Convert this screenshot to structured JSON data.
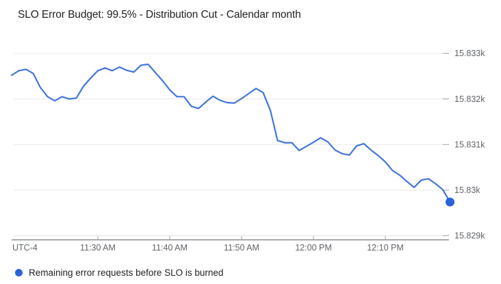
{
  "title": "SLO Error Budget: 99.5% - Distribution Cut - Calendar month",
  "legend": {
    "label": "Remaining error requests before SLO is burned"
  },
  "colors": {
    "line": "#4175da",
    "endpoint_marker": "#2a62d8",
    "legend_marker": "#2a62d8",
    "gridline": "#e8e8e8",
    "axis_line": "#74787d",
    "tick": "#9aa0a6",
    "axis_label": "#5f6368",
    "title_text": "#202124",
    "background": "#ffffff"
  },
  "chart_data": {
    "type": "line",
    "title": "SLO Error Budget: 99.5% - Distribution Cut - Calendar month",
    "series_name": "Remaining error requests before SLO is burned",
    "timezone_label": "UTC-4",
    "grid": true,
    "legend_position": "bottom",
    "y_axis_side": "right",
    "ylim": [
      15829,
      15833.3
    ],
    "y_ticks": [
      {
        "label": "15.833k",
        "value": 15833
      },
      {
        "label": "15.832k",
        "value": 15832
      },
      {
        "label": "15.831k",
        "value": 15831
      },
      {
        "label": "15.83k",
        "value": 15830
      },
      {
        "label": "15.829k",
        "value": 15829
      }
    ],
    "x_tick_labels": [
      "11:30 AM",
      "11:40 AM",
      "11:50 AM",
      "12:00 PM",
      "12:10 PM"
    ],
    "x": [
      "11:18 AM",
      "11:19 AM",
      "11:20 AM",
      "11:21 AM",
      "11:22 AM",
      "11:23 AM",
      "11:24 AM",
      "11:25 AM",
      "11:26 AM",
      "11:27 AM",
      "11:28 AM",
      "11:29 AM",
      "11:30 AM",
      "11:31 AM",
      "11:32 AM",
      "11:33 AM",
      "11:34 AM",
      "11:35 AM",
      "11:36 AM",
      "11:37 AM",
      "11:38 AM",
      "11:39 AM",
      "11:40 AM",
      "11:41 AM",
      "11:42 AM",
      "11:43 AM",
      "11:44 AM",
      "11:45 AM",
      "11:46 AM",
      "11:47 AM",
      "11:48 AM",
      "11:49 AM",
      "11:50 AM",
      "11:51 AM",
      "11:52 AM",
      "11:53 AM",
      "11:54 AM",
      "11:55 AM",
      "11:56 AM",
      "11:57 AM",
      "11:58 AM",
      "11:59 AM",
      "12:00 PM",
      "12:01 PM",
      "12:02 PM",
      "12:03 PM",
      "12:04 PM",
      "12:05 PM",
      "12:06 PM",
      "12:07 PM",
      "12:08 PM",
      "12:09 PM",
      "12:10 PM",
      "12:11 PM",
      "12:12 PM",
      "12:13 PM",
      "12:14 PM",
      "12:15 PM",
      "12:16 PM",
      "12:17 PM",
      "12:18 PM",
      "12:19 PM"
    ],
    "values": [
      15832.52,
      15832.62,
      15832.65,
      15832.56,
      15832.25,
      15832.05,
      15831.96,
      15832.05,
      15832.0,
      15832.02,
      15832.28,
      15832.46,
      15832.62,
      15832.68,
      15832.62,
      15832.7,
      15832.63,
      15832.59,
      15832.74,
      15832.76,
      15832.58,
      15832.4,
      15832.2,
      15832.05,
      15832.05,
      15831.84,
      15831.79,
      15831.93,
      15832.06,
      15831.97,
      15831.92,
      15831.91,
      15832.01,
      15832.12,
      15832.23,
      15832.14,
      15831.75,
      15831.09,
      15831.04,
      15831.04,
      15830.87,
      15830.96,
      15831.05,
      15831.15,
      15831.06,
      15830.88,
      15830.8,
      15830.77,
      15830.97,
      15831.02,
      15830.88,
      15830.76,
      15830.62,
      15830.43,
      15830.33,
      15830.19,
      15830.06,
      15830.22,
      15830.25,
      15830.14,
      15830.01,
      15829.74
    ]
  }
}
